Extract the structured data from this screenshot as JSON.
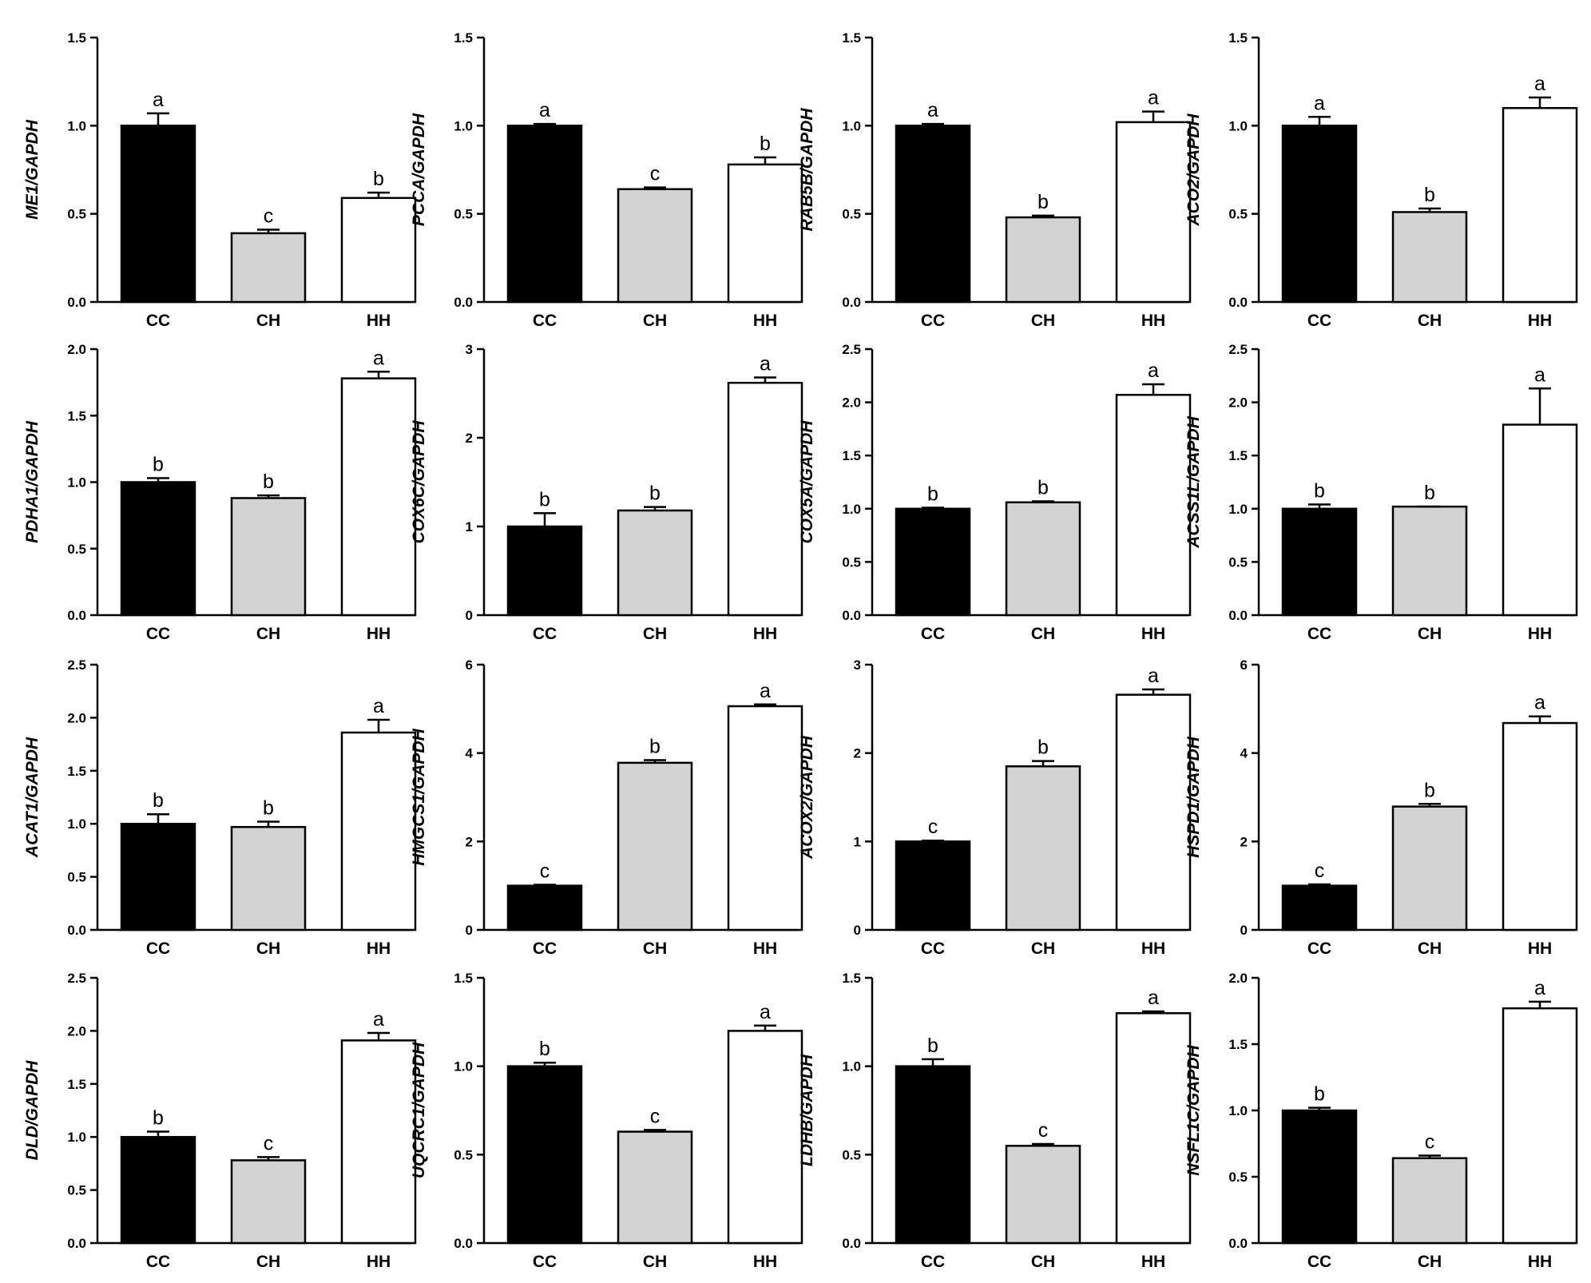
{
  "figure": {
    "categories": [
      "CC",
      "CH",
      "HH"
    ],
    "bar_colors": {
      "CC": "#000000",
      "CH": "#d3d3d3",
      "HH": "#ffffff"
    },
    "bar_stroke": "#000000"
  },
  "chart_data": [
    {
      "type": "bar",
      "ylabel": "ME1/GAPDH",
      "categories": [
        "CC",
        "CH",
        "HH"
      ],
      "values": [
        1.0,
        0.39,
        0.59
      ],
      "errors": [
        0.07,
        0.02,
        0.03
      ],
      "sig": [
        "a",
        "c",
        "b"
      ],
      "ylim": [
        0,
        1.5
      ],
      "yticks": [
        0,
        0.5,
        1.0,
        1.5
      ],
      "tick_labels": [
        "0.0",
        "0.5",
        "1.0",
        "1.5"
      ]
    },
    {
      "type": "bar",
      "ylabel": "PCCA/GAPDH",
      "categories": [
        "CC",
        "CH",
        "HH"
      ],
      "values": [
        1.0,
        0.64,
        0.78
      ],
      "errors": [
        0.01,
        0.01,
        0.04
      ],
      "sig": [
        "a",
        "c",
        "b"
      ],
      "ylim": [
        0,
        1.5
      ],
      "yticks": [
        0,
        0.5,
        1.0,
        1.5
      ],
      "tick_labels": [
        "0.0",
        "0.5",
        "1.0",
        "1.5"
      ]
    },
    {
      "type": "bar",
      "ylabel": "RAB5B/GAPDH",
      "categories": [
        "CC",
        "CH",
        "HH"
      ],
      "values": [
        1.0,
        0.48,
        1.02
      ],
      "errors": [
        0.01,
        0.01,
        0.06
      ],
      "sig": [
        "a",
        "b",
        "a"
      ],
      "ylim": [
        0,
        1.5
      ],
      "yticks": [
        0,
        0.5,
        1.0,
        1.5
      ],
      "tick_labels": [
        "0.0",
        "0.5",
        "1.0",
        "1.5"
      ]
    },
    {
      "type": "bar",
      "ylabel": "ACO2/GAPDH",
      "categories": [
        "CC",
        "CH",
        "HH"
      ],
      "values": [
        1.0,
        0.51,
        1.1
      ],
      "errors": [
        0.05,
        0.02,
        0.06
      ],
      "sig": [
        "a",
        "b",
        "a"
      ],
      "ylim": [
        0,
        1.5
      ],
      "yticks": [
        0,
        0.5,
        1.0,
        1.5
      ],
      "tick_labels": [
        "0.0",
        "0.5",
        "1.0",
        "1.5"
      ]
    },
    {
      "type": "bar",
      "ylabel": "PDHA1/GAPDH",
      "categories": [
        "CC",
        "CH",
        "HH"
      ],
      "values": [
        1.0,
        0.88,
        1.78
      ],
      "errors": [
        0.03,
        0.02,
        0.05
      ],
      "sig": [
        "b",
        "b",
        "a"
      ],
      "ylim": [
        0,
        2.0
      ],
      "yticks": [
        0,
        0.5,
        1.0,
        1.5,
        2.0
      ],
      "tick_labels": [
        "0.0",
        "0.5",
        "1.0",
        "1.5",
        "2.0"
      ]
    },
    {
      "type": "bar",
      "ylabel": "COX6C/GAPDH",
      "categories": [
        "CC",
        "CH",
        "HH"
      ],
      "values": [
        1.0,
        1.18,
        2.62
      ],
      "errors": [
        0.15,
        0.04,
        0.06
      ],
      "sig": [
        "b",
        "b",
        "a"
      ],
      "ylim": [
        0,
        3
      ],
      "yticks": [
        0,
        1,
        2,
        3
      ],
      "tick_labels": [
        "0",
        "1",
        "2",
        "3"
      ]
    },
    {
      "type": "bar",
      "ylabel": "COX5A/GAPDH",
      "categories": [
        "CC",
        "CH",
        "HH"
      ],
      "values": [
        1.0,
        1.06,
        2.07
      ],
      "errors": [
        0.01,
        0.01,
        0.1
      ],
      "sig": [
        "b",
        "b",
        "a"
      ],
      "ylim": [
        0,
        2.5
      ],
      "yticks": [
        0,
        0.5,
        1.0,
        1.5,
        2.0,
        2.5
      ],
      "tick_labels": [
        "0.0",
        "0.5",
        "1.0",
        "1.5",
        "2.0",
        "2.5"
      ]
    },
    {
      "type": "bar",
      "ylabel": "ACSS1L/GAPDH",
      "categories": [
        "CC",
        "CH",
        "HH"
      ],
      "values": [
        1.0,
        1.02,
        1.79
      ],
      "errors": [
        0.04,
        0.0,
        0.34
      ],
      "sig": [
        "b",
        "b",
        "a"
      ],
      "ylim": [
        0,
        2.5
      ],
      "yticks": [
        0,
        0.5,
        1.0,
        1.5,
        2.0,
        2.5
      ],
      "tick_labels": [
        "0.0",
        "0.5",
        "1.0",
        "1.5",
        "2.0",
        "2.5"
      ]
    },
    {
      "type": "bar",
      "ylabel": "ACAT1/GAPDH",
      "categories": [
        "CC",
        "CH",
        "HH"
      ],
      "values": [
        1.0,
        0.97,
        1.86
      ],
      "errors": [
        0.09,
        0.05,
        0.12
      ],
      "sig": [
        "b",
        "b",
        "a"
      ],
      "ylim": [
        0,
        2.5
      ],
      "yticks": [
        0,
        0.5,
        1.0,
        1.5,
        2.0,
        2.5
      ],
      "tick_labels": [
        "0.0",
        "0.5",
        "1.0",
        "1.5",
        "2.0",
        "2.5"
      ]
    },
    {
      "type": "bar",
      "ylabel": "HMGCS1/GAPDH",
      "categories": [
        "CC",
        "CH",
        "HH"
      ],
      "values": [
        1.0,
        3.78,
        5.06
      ],
      "errors": [
        0.02,
        0.06,
        0.04
      ],
      "sig": [
        "c",
        "b",
        "a"
      ],
      "ylim": [
        0,
        6
      ],
      "yticks": [
        0,
        2,
        4,
        6
      ],
      "tick_labels": [
        "0",
        "2",
        "4",
        "6"
      ]
    },
    {
      "type": "bar",
      "ylabel": "ACOX2/GAPDH",
      "categories": [
        "CC",
        "CH",
        "HH"
      ],
      "values": [
        1.0,
        1.85,
        2.66
      ],
      "errors": [
        0.01,
        0.06,
        0.06
      ],
      "sig": [
        "c",
        "b",
        "a"
      ],
      "ylim": [
        0,
        3
      ],
      "yticks": [
        0,
        1,
        2,
        3
      ],
      "tick_labels": [
        "0",
        "1",
        "2",
        "3"
      ]
    },
    {
      "type": "bar",
      "ylabel": "HSPD1/GAPDH",
      "categories": [
        "CC",
        "CH",
        "HH"
      ],
      "values": [
        1.0,
        2.79,
        4.68
      ],
      "errors": [
        0.03,
        0.06,
        0.15
      ],
      "sig": [
        "c",
        "b",
        "a"
      ],
      "ylim": [
        0,
        6
      ],
      "yticks": [
        0,
        2,
        4,
        6
      ],
      "tick_labels": [
        "0",
        "2",
        "4",
        "6"
      ]
    },
    {
      "type": "bar",
      "ylabel": "DLD/GAPDH",
      "categories": [
        "CC",
        "CH",
        "HH"
      ],
      "values": [
        1.0,
        0.78,
        1.91
      ],
      "errors": [
        0.05,
        0.03,
        0.07
      ],
      "sig": [
        "b",
        "c",
        "a"
      ],
      "ylim": [
        0,
        2.5
      ],
      "yticks": [
        0,
        0.5,
        1.0,
        1.5,
        2.0,
        2.5
      ],
      "tick_labels": [
        "0.0",
        "0.5",
        "1.0",
        "1.5",
        "2.0",
        "2.5"
      ]
    },
    {
      "type": "bar",
      "ylabel": "UQCRC1/GAPDH",
      "categories": [
        "CC",
        "CH",
        "HH"
      ],
      "values": [
        1.0,
        0.63,
        1.2
      ],
      "errors": [
        0.02,
        0.01,
        0.03
      ],
      "sig": [
        "b",
        "c",
        "a"
      ],
      "ylim": [
        0,
        1.5
      ],
      "yticks": [
        0,
        0.5,
        1.0,
        1.5
      ],
      "tick_labels": [
        "0.0",
        "0.5",
        "1.0",
        "1.5"
      ]
    },
    {
      "type": "bar",
      "ylabel": "LDHB/GAPDH",
      "categories": [
        "CC",
        "CH",
        "HH"
      ],
      "values": [
        1.0,
        0.55,
        1.3
      ],
      "errors": [
        0.04,
        0.01,
        0.01
      ],
      "sig": [
        "b",
        "c",
        "a"
      ],
      "ylim": [
        0,
        1.5
      ],
      "yticks": [
        0,
        0.5,
        1.0,
        1.5
      ],
      "tick_labels": [
        "0.0",
        "0.5",
        "1.0",
        "1.5"
      ]
    },
    {
      "type": "bar",
      "ylabel": "NSFL1C/GAPDH",
      "categories": [
        "CC",
        "CH",
        "HH"
      ],
      "values": [
        1.0,
        0.64,
        1.77
      ],
      "errors": [
        0.02,
        0.02,
        0.05
      ],
      "sig": [
        "b",
        "c",
        "a"
      ],
      "ylim": [
        0,
        2.0
      ],
      "yticks": [
        0,
        0.5,
        1.0,
        1.5,
        2.0
      ],
      "tick_labels": [
        "0.0",
        "0.5",
        "1.0",
        "1.5",
        "2.0"
      ]
    }
  ]
}
